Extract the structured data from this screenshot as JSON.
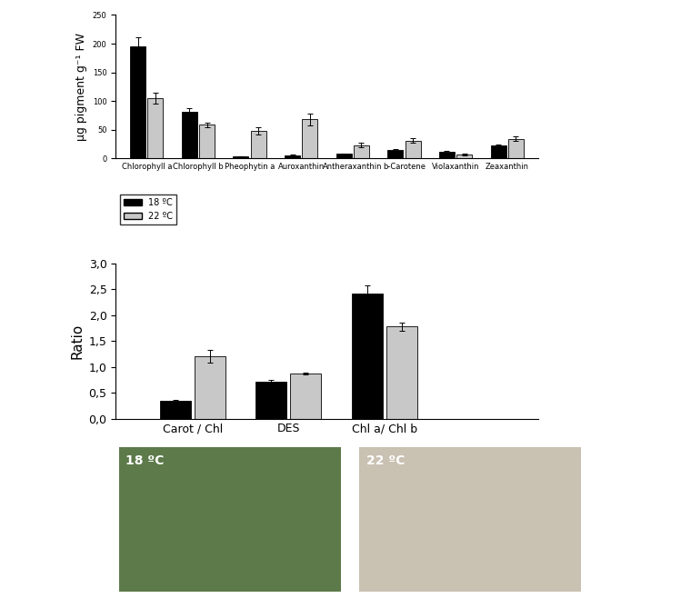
{
  "chart_data": [
    {
      "type": "bar",
      "y_label": "µg pigment g⁻¹ FW",
      "categories": [
        "Chlorophyll a",
        "Chlorophyll b",
        "Pheophytin a",
        "Auroxanthin",
        "Antheraxanthin",
        "b-Carotene",
        "Violaxanthin",
        "Zeaxanthin"
      ],
      "series": [
        {
          "name": "18 ºC",
          "color": "#000000",
          "values": [
            196,
            82,
            3,
            5,
            8,
            15,
            11,
            23
          ],
          "errors": [
            15,
            5,
            1,
            2,
            1,
            1,
            2,
            2
          ]
        },
        {
          "name": "22 ºC",
          "color": "#c8c8c8",
          "values": [
            105,
            59,
            48,
            68,
            23,
            31,
            7,
            34
          ],
          "errors": [
            10,
            4,
            7,
            10,
            4,
            4,
            1,
            4
          ]
        }
      ],
      "ylim": [
        0,
        250
      ],
      "yticks": [
        0,
        50,
        100,
        150,
        200,
        250
      ],
      "legend": "upper left"
    },
    {
      "type": "bar",
      "y_label": "Ratio",
      "categories": [
        "Carot / Chl",
        "DES",
        "Chl a/ Chl b"
      ],
      "series": [
        {
          "color": "#000000",
          "values": [
            0.34,
            0.72,
            2.42
          ],
          "errors": [
            0.03,
            0.02,
            0.15
          ]
        },
        {
          "color": "#c8c8c8",
          "values": [
            1.2,
            0.87,
            1.78
          ],
          "errors": [
            0.12,
            0.01,
            0.08
          ]
        }
      ],
      "ylim": [
        0,
        3.0
      ],
      "yticks": [
        {
          "value": 0,
          "label": "0,0"
        },
        {
          "value": 0.5,
          "label": "0,5"
        },
        {
          "value": 1.0,
          "label": "1,0"
        },
        {
          "value": 1.5,
          "label": "1,5"
        },
        {
          "value": 2.0,
          "label": "2,0"
        },
        {
          "value": 2.5,
          "label": "2,5"
        },
        {
          "value": 3.0,
          "label": "3,0"
        }
      ]
    }
  ],
  "photos": [
    "18 ºC",
    "22 ºC"
  ]
}
